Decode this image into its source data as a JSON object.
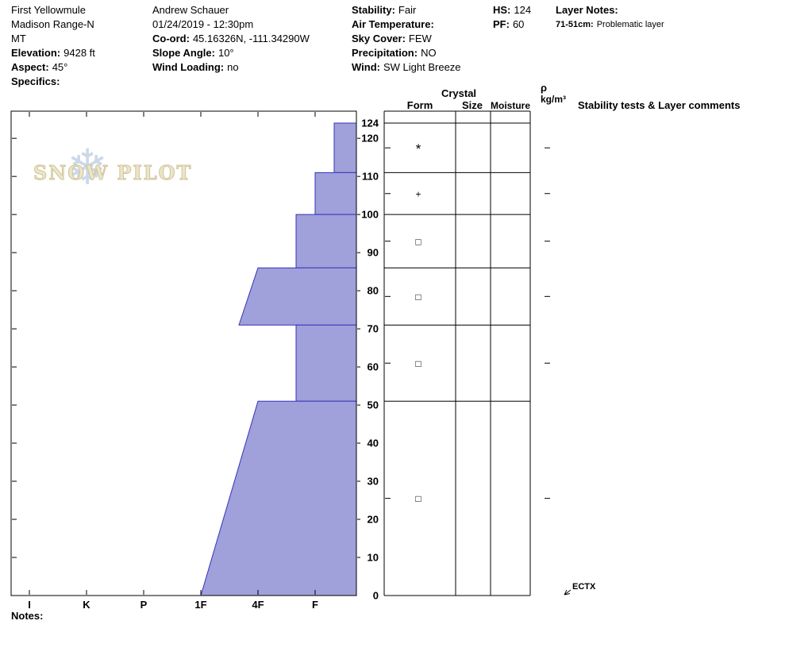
{
  "header": {
    "col1": {
      "title": "First Yellowmule",
      "region": "Madison Range-N",
      "state": "MT",
      "elevation_label": "Elevation:",
      "elevation_value": "9428 ft",
      "aspect_label": "Aspect:",
      "aspect_value": "45°",
      "specifics_label": "Specifics:"
    },
    "col2": {
      "observer": "Andrew Schauer",
      "datetime": "01/24/2019 - 12:30pm",
      "coord_label": "Co-ord:",
      "coord_value": "45.16326N, -111.34290W",
      "slope_angle_label": "Slope Angle:",
      "slope_angle_value": "10°",
      "wind_loading_label": "Wind Loading:",
      "wind_loading_value": "no"
    },
    "col3": {
      "stability_label": "Stability:",
      "stability_value": "Fair",
      "air_temp_label": "Air Temperature:",
      "air_temp_value": "",
      "sky_cover_label": "Sky Cover:",
      "sky_cover_value": "FEW",
      "precip_label": "Precipitation:",
      "precip_value": "NO",
      "wind_label": "Wind:",
      "wind_value": "SW Light Breeze"
    },
    "col4": {
      "hs_label": "HS:",
      "hs_value": "124",
      "pf_label": "PF:",
      "pf_value": "60"
    },
    "col5": {
      "layer_notes_label": "Layer Notes:",
      "note_depth": "71-51cm:",
      "note_text": "Problematic layer"
    }
  },
  "logo": {
    "text": "SNOW PILOT",
    "snowflake": "❄"
  },
  "grid_headers": {
    "crystal": "Crystal",
    "form": "Form",
    "size": "Size",
    "moisture": "Moisture",
    "rho": "ρ",
    "rho_units": "kg/m³",
    "stability": "Stability tests & Layer comments"
  },
  "notes_label": "Notes:",
  "stability_tests": [
    {
      "label": "ECTX",
      "depth_cm": 0
    }
  ],
  "chart_data": {
    "type": "bar",
    "subtype": "snow-hardness-profile",
    "title": "Snow pit hand-hardness profile",
    "hs_cm": 124,
    "depth_axis": {
      "unit": "cm",
      "ticks": [
        124,
        120,
        110,
        100,
        90,
        80,
        70,
        60,
        50,
        40,
        30,
        20,
        10,
        0
      ],
      "minor_step": 10
    },
    "hardness_axis": {
      "categories": [
        "I",
        "K",
        "P",
        "1F",
        "4F",
        "F"
      ]
    },
    "layers": [
      {
        "top_cm": 124,
        "bottom_cm": 111,
        "hardness_top": "F-",
        "hardness_bottom": "F-",
        "form": "*"
      },
      {
        "top_cm": 111,
        "bottom_cm": 100,
        "hardness_top": "F",
        "hardness_bottom": "F",
        "form": "+"
      },
      {
        "top_cm": 100,
        "bottom_cm": 86,
        "hardness_top": "F+",
        "hardness_bottom": "F+",
        "form": "□"
      },
      {
        "top_cm": 86,
        "bottom_cm": 71,
        "hardness_top": "4F",
        "hardness_bottom": "4F+",
        "form": "□"
      },
      {
        "top_cm": 71,
        "bottom_cm": 51,
        "hardness_top": "F+",
        "hardness_bottom": "F+",
        "form": "□"
      },
      {
        "top_cm": 51,
        "bottom_cm": 0,
        "hardness_top": "4F",
        "hardness_bottom": "1F",
        "form": "□"
      }
    ],
    "colors": {
      "layer_fill": "#a0a0da",
      "layer_stroke": "#3434bc"
    }
  }
}
